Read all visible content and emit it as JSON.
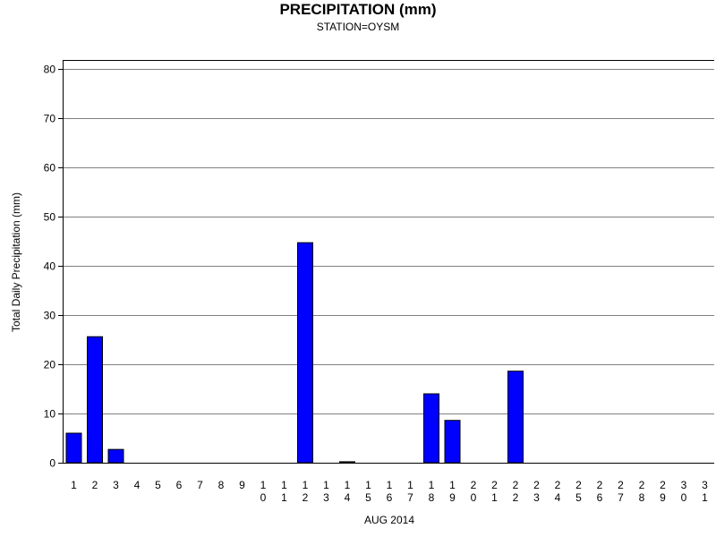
{
  "chart_data": {
    "type": "bar",
    "title": "PRECIPITATION (mm)",
    "subtitle": "STATION=OYSM",
    "xlabel": "AUG 2014",
    "ylabel": "Total Daily Precipitation (mm)",
    "ylim": [
      0,
      80
    ],
    "yticks": [
      0,
      10,
      20,
      30,
      40,
      50,
      60,
      70,
      80
    ],
    "grid": true,
    "categories": [
      "1",
      "2",
      "3",
      "4",
      "5",
      "6",
      "7",
      "8",
      "9",
      "10",
      "11",
      "12",
      "13",
      "14",
      "15",
      "16",
      "17",
      "18",
      "19",
      "20",
      "21",
      "22",
      "23",
      "24",
      "25",
      "26",
      "27",
      "28",
      "29",
      "30",
      "31"
    ],
    "values": [
      6,
      25.6,
      2.7,
      0,
      0,
      0,
      0,
      0,
      0,
      0,
      0,
      44.7,
      0,
      0.2,
      0,
      0,
      0,
      14,
      8.6,
      0,
      0,
      18.6,
      0,
      0,
      0,
      0,
      0,
      0,
      0,
      0,
      0
    ],
    "bar_color": "#0000ff",
    "bar_edge_color": "#000000",
    "grid_color": "#808080"
  }
}
